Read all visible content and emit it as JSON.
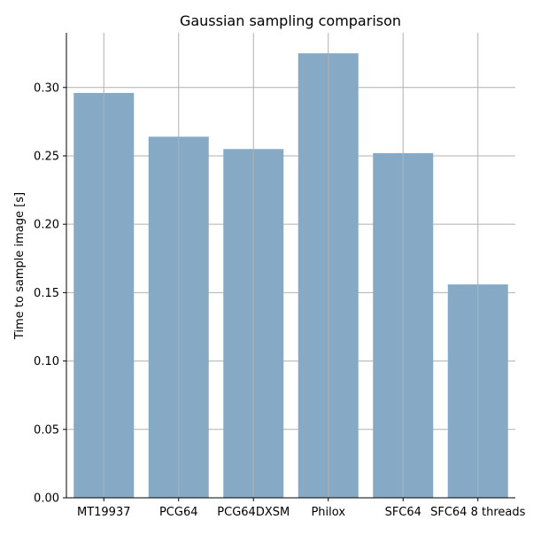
{
  "chart_data": {
    "type": "bar",
    "title": "Gaussian sampling comparison",
    "xlabel": "",
    "ylabel": "Time to sample image [s]",
    "categories": [
      "MT19937",
      "PCG64",
      "PCG64DXSM",
      "Philox",
      "SFC64",
      "SFC64 8 threads"
    ],
    "values": [
      0.296,
      0.264,
      0.255,
      0.325,
      0.252,
      0.156
    ],
    "ylim": [
      0,
      0.34
    ],
    "yticks": [
      0.0,
      0.05,
      0.1,
      0.15,
      0.2,
      0.25,
      0.3
    ],
    "ytick_labels": [
      "0.00",
      "0.05",
      "0.10",
      "0.15",
      "0.20",
      "0.25",
      "0.30"
    ],
    "grid": true,
    "bar_color": "#86aac6",
    "grid_color": "#b0b0b0",
    "axis_color": "#000000"
  }
}
